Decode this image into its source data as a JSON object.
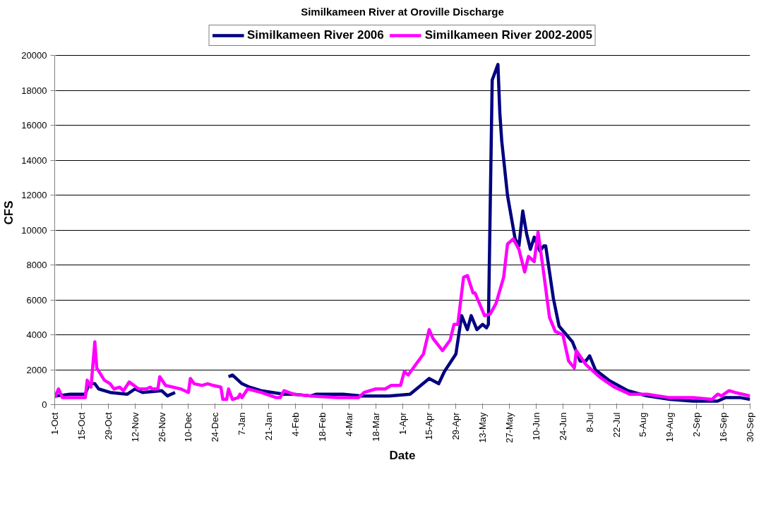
{
  "chart_data": {
    "type": "line",
    "title": "Similkameen River at Oroville Discharge",
    "xlabel": "Date",
    "ylabel": "CFS",
    "xlim": [
      "2005-10-01",
      "2006-09-30"
    ],
    "ylim": [
      0,
      20000
    ],
    "xticks": [
      {
        "value": "2005-10-01",
        "label": "1-Oct"
      },
      {
        "value": "2005-10-15",
        "label": "15-Oct"
      },
      {
        "value": "2005-10-29",
        "label": "29-Oct"
      },
      {
        "value": "2005-11-12",
        "label": "12-Nov"
      },
      {
        "value": "2005-11-26",
        "label": "26-Nov"
      },
      {
        "value": "2005-12-10",
        "label": "10-Dec"
      },
      {
        "value": "2005-12-24",
        "label": "24-Dec"
      },
      {
        "value": "2006-01-07",
        "label": "7-Jan"
      },
      {
        "value": "2006-01-21",
        "label": "21-Jan"
      },
      {
        "value": "2006-02-04",
        "label": "4-Feb"
      },
      {
        "value": "2006-02-18",
        "label": "18-Feb"
      },
      {
        "value": "2006-03-04",
        "label": "4-Mar"
      },
      {
        "value": "2006-03-18",
        "label": "18-Mar"
      },
      {
        "value": "2006-04-01",
        "label": "1-Apr"
      },
      {
        "value": "2006-04-15",
        "label": "15-Apr"
      },
      {
        "value": "2006-04-29",
        "label": "29-Apr"
      },
      {
        "value": "2006-05-13",
        "label": "13-May"
      },
      {
        "value": "2006-05-27",
        "label": "27-May"
      },
      {
        "value": "2006-06-10",
        "label": "10-Jun"
      },
      {
        "value": "2006-06-24",
        "label": "24-Jun"
      },
      {
        "value": "2006-07-08",
        "label": "8-Jul"
      },
      {
        "value": "2006-07-22",
        "label": "22-Jul"
      },
      {
        "value": "2006-08-05",
        "label": "5-Aug"
      },
      {
        "value": "2006-08-19",
        "label": "19-Aug"
      },
      {
        "value": "2006-09-02",
        "label": "2-Sep"
      },
      {
        "value": "2006-09-16",
        "label": "16-Sep"
      },
      {
        "value": "2006-09-30",
        "label": "30-Sep"
      }
    ],
    "yticks": [
      0,
      2000,
      4000,
      6000,
      8000,
      10000,
      12000,
      14000,
      16000,
      18000,
      20000
    ],
    "grid": "y",
    "legend": "top",
    "marker": "none",
    "line_style": "solid",
    "series": [
      {
        "name": "Similkameen River 2006",
        "color": "#000080",
        "x": [
          "2005-10-01",
          "2005-10-02",
          "2005-10-09",
          "2005-10-17",
          "2005-10-19",
          "2005-10-22",
          "2005-10-24",
          "2005-10-30",
          "2005-11-08",
          "2005-11-12",
          "2005-11-16",
          "2005-11-26",
          "2005-11-29",
          "2005-12-03",
          "2005-12-15",
          "2005-12-31",
          "2006-01-02",
          "2006-01-07",
          "2006-01-11",
          "2006-01-17",
          "2006-01-29",
          "2006-02-03",
          "2006-02-12",
          "2006-02-15",
          "2006-03-01",
          "2006-03-10",
          "2006-03-25",
          "2006-04-05",
          "2006-04-15",
          "2006-04-20",
          "2006-04-23",
          "2006-04-29",
          "2006-05-02",
          "2006-05-05",
          "2006-05-07",
          "2006-05-10",
          "2006-05-13",
          "2006-05-15",
          "2006-05-16",
          "2006-05-18",
          "2006-05-21",
          "2006-05-22",
          "2006-05-23",
          "2006-05-26",
          "2006-05-30",
          "2006-06-01",
          "2006-06-03",
          "2006-06-05",
          "2006-06-07",
          "2006-06-09",
          "2006-06-12",
          "2006-06-14",
          "2006-06-15",
          "2006-06-19",
          "2006-06-22",
          "2006-06-29",
          "2006-07-03",
          "2006-07-06",
          "2006-07-08",
          "2006-07-11",
          "2006-07-18",
          "2006-07-28",
          "2006-08-07",
          "2006-08-19",
          "2006-08-31",
          "2006-09-13",
          "2006-09-17",
          "2006-09-25",
          "2006-09-30"
        ],
        "values": [
          600,
          500,
          600,
          600,
          1200,
          1200,
          900,
          700,
          600,
          900,
          700,
          800,
          500,
          700,
          null,
          1600,
          1700,
          1200,
          1000,
          800,
          600,
          600,
          500,
          600,
          600,
          500,
          500,
          600,
          1500,
          1200,
          1900,
          2900,
          5100,
          4300,
          5100,
          4300,
          4600,
          4400,
          4600,
          18600,
          19500,
          16700,
          15100,
          12000,
          9500,
          9100,
          11100,
          9800,
          8900,
          9600,
          8800,
          9100,
          9100,
          6100,
          4500,
          3600,
          2500,
          2500,
          2800,
          2000,
          1400,
          800,
          500,
          300,
          200,
          200,
          400,
          400,
          300
        ]
      },
      {
        "name": "Similkameen River 2002-2005",
        "color": "#ff00ff",
        "x": [
          "2005-10-01",
          "2005-10-03",
          "2005-10-05",
          "2005-10-17",
          "2005-10-18",
          "2005-10-20",
          "2005-10-22",
          "2005-10-23",
          "2005-10-27",
          "2005-10-30",
          "2005-11-01",
          "2005-11-04",
          "2005-11-06",
          "2005-11-09",
          "2005-11-14",
          "2005-11-18",
          "2005-11-20",
          "2005-11-21",
          "2005-11-24",
          "2005-11-25",
          "2005-11-28",
          "2005-12-06",
          "2005-12-10",
          "2005-12-11",
          "2005-12-13",
          "2005-12-17",
          "2005-12-20",
          "2005-12-23",
          "2005-12-27",
          "2005-12-28",
          "2005-12-30",
          "2005-12-31",
          "2006-01-02",
          "2006-01-05",
          "2006-01-06",
          "2006-01-07",
          "2006-01-10",
          "2006-01-17",
          "2006-01-25",
          "2006-01-27",
          "2006-01-29",
          "2006-02-03",
          "2006-02-12",
          "2006-02-26",
          "2006-03-09",
          "2006-03-12",
          "2006-03-18",
          "2006-03-23",
          "2006-03-26",
          "2006-03-31",
          "2006-04-02",
          "2006-04-04",
          "2006-04-12",
          "2006-04-15",
          "2006-04-17",
          "2006-04-22",
          "2006-04-26",
          "2006-04-28",
          "2006-04-30",
          "2006-05-03",
          "2006-05-05",
          "2006-05-08",
          "2006-05-09",
          "2006-05-14",
          "2006-05-17",
          "2006-05-20",
          "2006-05-24",
          "2006-05-26",
          "2006-05-29",
          "2006-06-01",
          "2006-06-04",
          "2006-06-06",
          "2006-06-09",
          "2006-06-11",
          "2006-06-14",
          "2006-06-17",
          "2006-06-20",
          "2006-06-24",
          "2006-06-27",
          "2006-06-30",
          "2006-07-01",
          "2006-07-06",
          "2006-07-13",
          "2006-07-21",
          "2006-07-29",
          "2006-08-07",
          "2006-08-19",
          "2006-08-31",
          "2006-09-10",
          "2006-09-13",
          "2006-09-15",
          "2006-09-19",
          "2006-09-22",
          "2006-09-30"
        ],
        "values": [
          400,
          900,
          400,
          400,
          1400,
          1000,
          3600,
          2100,
          1400,
          1200,
          900,
          1000,
          800,
          1300,
          900,
          900,
          1000,
          900,
          900,
          1600,
          1100,
          900,
          700,
          1500,
          1200,
          1100,
          1200,
          1100,
          1000,
          300,
          300,
          900,
          300,
          400,
          600,
          400,
          900,
          700,
          400,
          400,
          800,
          600,
          500,
          400,
          400,
          700,
          900,
          900,
          1100,
          1100,
          1900,
          1700,
          2900,
          4300,
          3800,
          3100,
          3700,
          4600,
          4600,
          7300,
          7400,
          6400,
          6400,
          5100,
          5200,
          5800,
          7300,
          9200,
          9500,
          8900,
          7600,
          8500,
          8200,
          9900,
          7500,
          5000,
          4200,
          4000,
          2500,
          2100,
          3100,
          2300,
          1600,
          1000,
          600,
          600,
          400,
          400,
          300,
          600,
          500,
          800,
          700,
          500
        ]
      }
    ]
  }
}
